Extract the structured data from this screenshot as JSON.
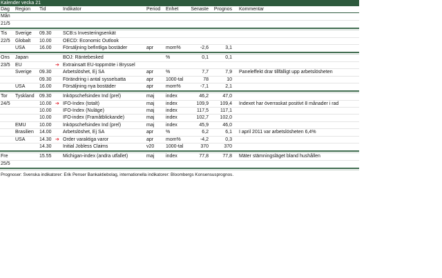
{
  "title": "Kalender vecka 21",
  "headers": {
    "dag": "Dag",
    "region": "Region",
    "tid": "Tid",
    "indikator": "Indikator",
    "period": "Period",
    "enhet": "Enhet",
    "senaste": "Senaste",
    "prognos": "Prognos",
    "kommentar": "Kommentar"
  },
  "accent": "#2d5a3d",
  "groups": [
    {
      "rows": [
        {
          "dag": "Mån"
        },
        {
          "dag": "21/5"
        }
      ]
    },
    {
      "rows": [
        {
          "dag": "Tis",
          "region": "Sverige",
          "tid": "09.30",
          "indikator": "SCB:s Investeringsenkät"
        },
        {
          "dag": "22/5",
          "region": "Globalt",
          "tid": "10.00",
          "indikator": "OECD: Economic Outlook"
        },
        {
          "region": "USA",
          "tid": "16.00",
          "indikator": "Försäljning befintliga bostäder",
          "period": "apr",
          "enhet": "mom%",
          "senaste": "-2,6",
          "prognos": "3,1"
        }
      ]
    },
    {
      "rows": [
        {
          "dag": "Ons",
          "region": "Japan",
          "indikator": "BOJ: Räntebesked",
          "enhet": "%",
          "senaste": "0,1",
          "prognos": "0,1"
        },
        {
          "dag": "23/5",
          "region": "EU",
          "arrow": true,
          "indikator": "Extrainsatt EU-toppmöte i Bryssel"
        },
        {
          "region": "Sverige",
          "tid": "09.30",
          "indikator": "Arbetslöshet, Ej SA",
          "period": "apr",
          "enhet": "%",
          "senaste": "7,7",
          "prognos": "7,9",
          "kommentar": "Paneleffekt drar tillfälligt upp arbetslösheten"
        },
        {
          "tid": "09.30",
          "indikator": "Förändring i antal sysselsatta",
          "period": "apr",
          "enhet": "1000-tal",
          "senaste": "78",
          "prognos": "10"
        },
        {
          "region": "USA",
          "tid": "16.00",
          "indikator": "Försäljning nya bostäder",
          "period": "apr",
          "enhet": "mom%",
          "senaste": "-7,1",
          "prognos": "2,1"
        }
      ]
    },
    {
      "rows": [
        {
          "dag": "Tor",
          "region": "Tyskland",
          "tid": "09.30",
          "indikator": "Inköpschefsindex Ind (prel)",
          "period": "maj",
          "enhet": "index",
          "senaste": "46,2",
          "prognos": "47,0"
        },
        {
          "dag": "24/5",
          "tid": "10.00",
          "arrow": true,
          "indikator": "IFO-Index (totalt)",
          "period": "maj",
          "enhet": "index",
          "senaste": "109,9",
          "prognos": "109,4",
          "kommentar": "Indexet har överraskat positivt 8 månader i rad"
        },
        {
          "tid": "10.00",
          "indikator": "IFO-Index (Nuläge)",
          "period": "maj",
          "enhet": "index",
          "senaste": "117,5",
          "prognos": "117,1"
        },
        {
          "tid": "10.00",
          "indikator": "IFO-index (Framåtblickande)",
          "period": "maj",
          "enhet": "index",
          "senaste": "102,7",
          "prognos": "102,0"
        },
        {
          "region": "EMU",
          "tid": "10.00",
          "indikator": "Inköpschefsindex Ind (prel)",
          "period": "maj",
          "enhet": "index",
          "senaste": "45,9",
          "prognos": "46,0"
        },
        {
          "region": "Brasilien",
          "tid": "14.00",
          "indikator": "Arbetslöshet, Ej SA",
          "period": "apr",
          "enhet": "%",
          "senaste": "6,2",
          "prognos": "6,1",
          "kommentar": "I april 2011 var arbetslösheten 6,4%"
        },
        {
          "region": "USA",
          "tid": "14.30",
          "arrow": true,
          "indikator": "Order varaktiga varor",
          "period": "apr",
          "enhet": "mom%",
          "senaste": "-4,2",
          "prognos": "0,3"
        },
        {
          "tid": "14.30",
          "indikator": "Initial Jobless Claims",
          "period": "v20",
          "enhet": "1000-tal",
          "senaste": "370",
          "prognos": "370"
        }
      ]
    },
    {
      "rows": [
        {
          "dag": "Fre",
          "tid": "15.55",
          "indikator": "Michigan-index (andra utfallet)",
          "period": "maj",
          "enhet": "index",
          "senaste": "77,8",
          "prognos": "77,8",
          "kommentar": "Mäter stämningsläget bland hushållen"
        },
        {
          "dag": "25/5"
        }
      ]
    }
  ],
  "footnote": "Prognoser: Svenska indikatorer: Erik Penser Bankaktiebolag, internationella indikatorer: Bloombergs Konsensusprognos."
}
